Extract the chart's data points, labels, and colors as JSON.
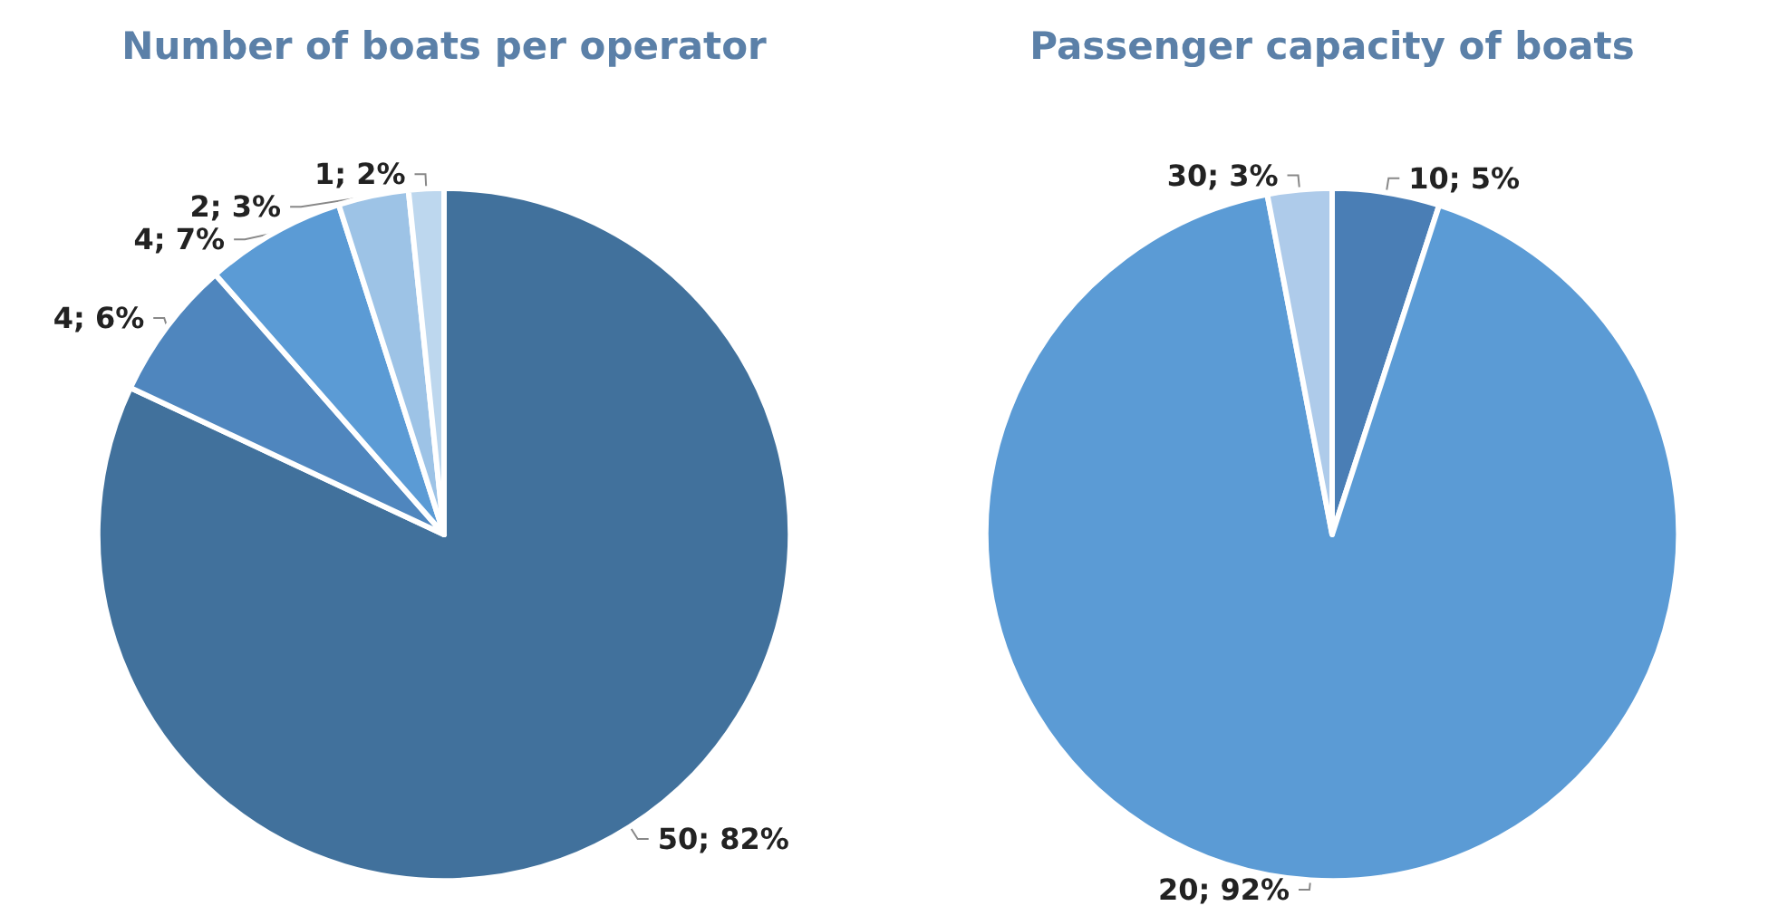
{
  "chart_data": [
    {
      "type": "pie",
      "title": "Number of boats per operator",
      "categories": [
        null,
        null,
        null,
        null,
        null
      ],
      "values": [
        50,
        4,
        4,
        2,
        1
      ],
      "colors": [
        "#41719c",
        "#4f86be",
        "#5b9bd5",
        "#9dc3e6",
        "#bdd7ee"
      ],
      "value_labels": [
        "50; 82%",
        "4; 6%",
        "4; 7%",
        "2; 3%",
        "1; 2%"
      ]
    },
    {
      "type": "pie",
      "title": "Passenger capacity of boats",
      "categories": [
        null,
        null,
        null
      ],
      "values": [
        5,
        92,
        3
      ],
      "colors": [
        "#4a7eb5",
        "#5b9bd5",
        "#aecbea"
      ],
      "value_labels": [
        "10; 5%",
        "20; 92%",
        "30; 3%"
      ]
    }
  ]
}
